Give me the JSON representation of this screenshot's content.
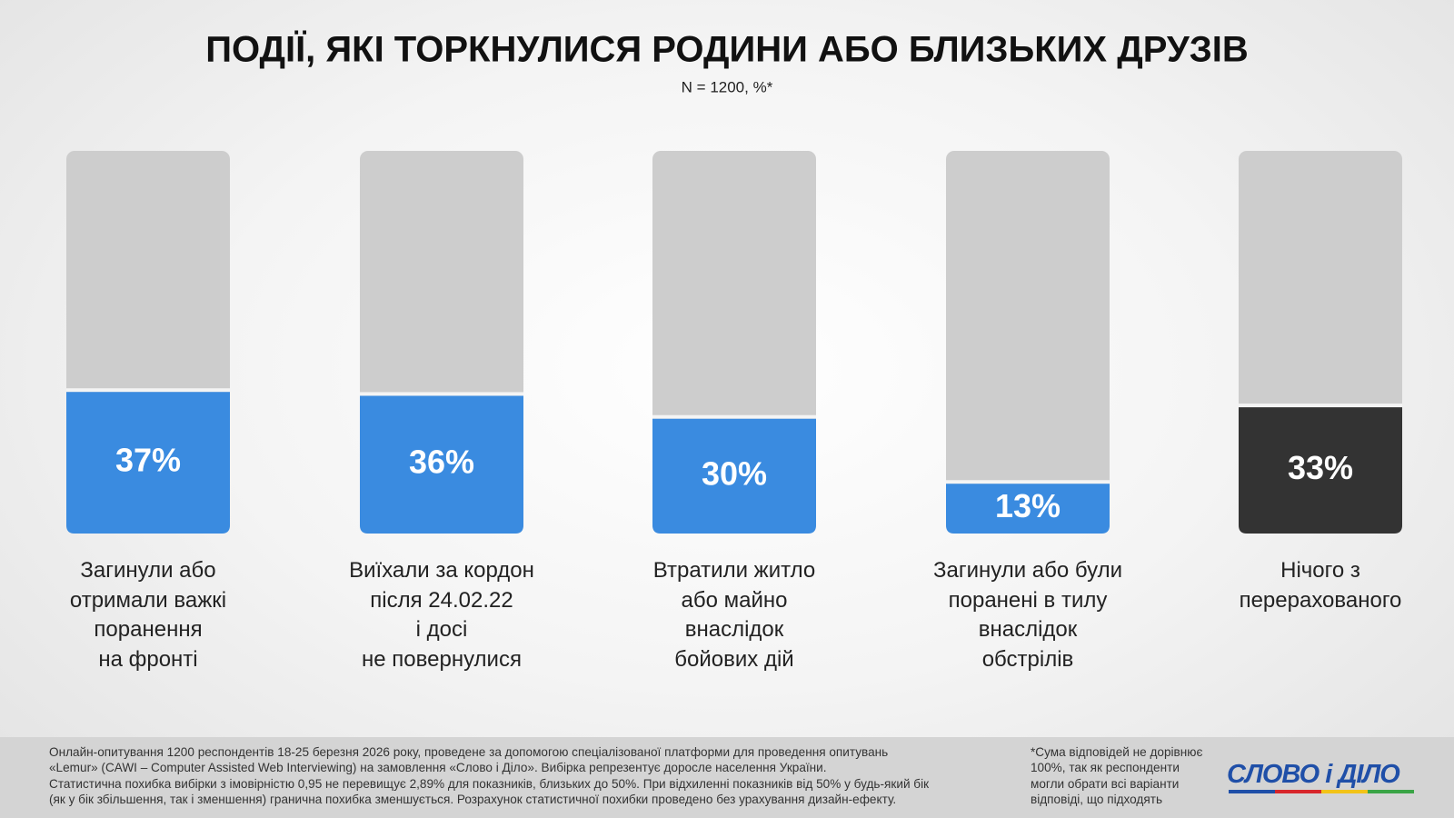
{
  "chart_data": {
    "type": "bar",
    "title": "ПОДІЇ, ЯКІ ТОРКНУЛИСЯ РОДИНИ АБО БЛИЗЬКИХ ДРУЗІВ",
    "subtitle": "N = 1200, %*",
    "categories": [
      "Загинули або\nотримали важкі\nпоранення\nна фронті",
      "Виїхали за кордон\nпісля 24.02.22\nі досі\nне повернулися",
      "Втратили житло\nабо майно\nвнаслідок\nбойових дій",
      "Загинули або були\nпоранені в тилу\nвнаслідок\nобстрілів",
      "Нічого з\nперерахованого"
    ],
    "values": [
      37,
      36,
      30,
      13,
      33
    ],
    "value_labels": [
      "37%",
      "36%",
      "30%",
      "13%",
      "33%"
    ],
    "colors": [
      "#3a8be0",
      "#3a8be0",
      "#3a8be0",
      "#3a8be0",
      "#333333"
    ],
    "ylim": [
      0,
      100
    ]
  },
  "footer": {
    "methodology": "Онлайн-опитування 1200 респондентів 18-25 березня 2026 року, проведене за допомогою спеціалізованої платформи для проведення опитувань\n«Lemur» (CAWI – Computer Assisted Web Interviewing) на замовлення «Слово і Діло». Вибірка репрезентує доросле населення України.\nСтатистична похибка вибірки з імовірністю 0,95 не перевищує 2,89% для показників, близьких до 50%. При відхиленні показників від 50% у будь-який бік\n(як у бік збільшення, так і зменшення) гранична похибка зменшується. Розрахунок статистичної похибки проведено без урахування дизайн-ефекту.",
    "note": "*Сума відповідей не дорівнює\n100%, так як респонденти\nмогли обрати всі варіанти\nвідповіді, що підходять",
    "logo": "СЛОВО і ДІЛО"
  }
}
